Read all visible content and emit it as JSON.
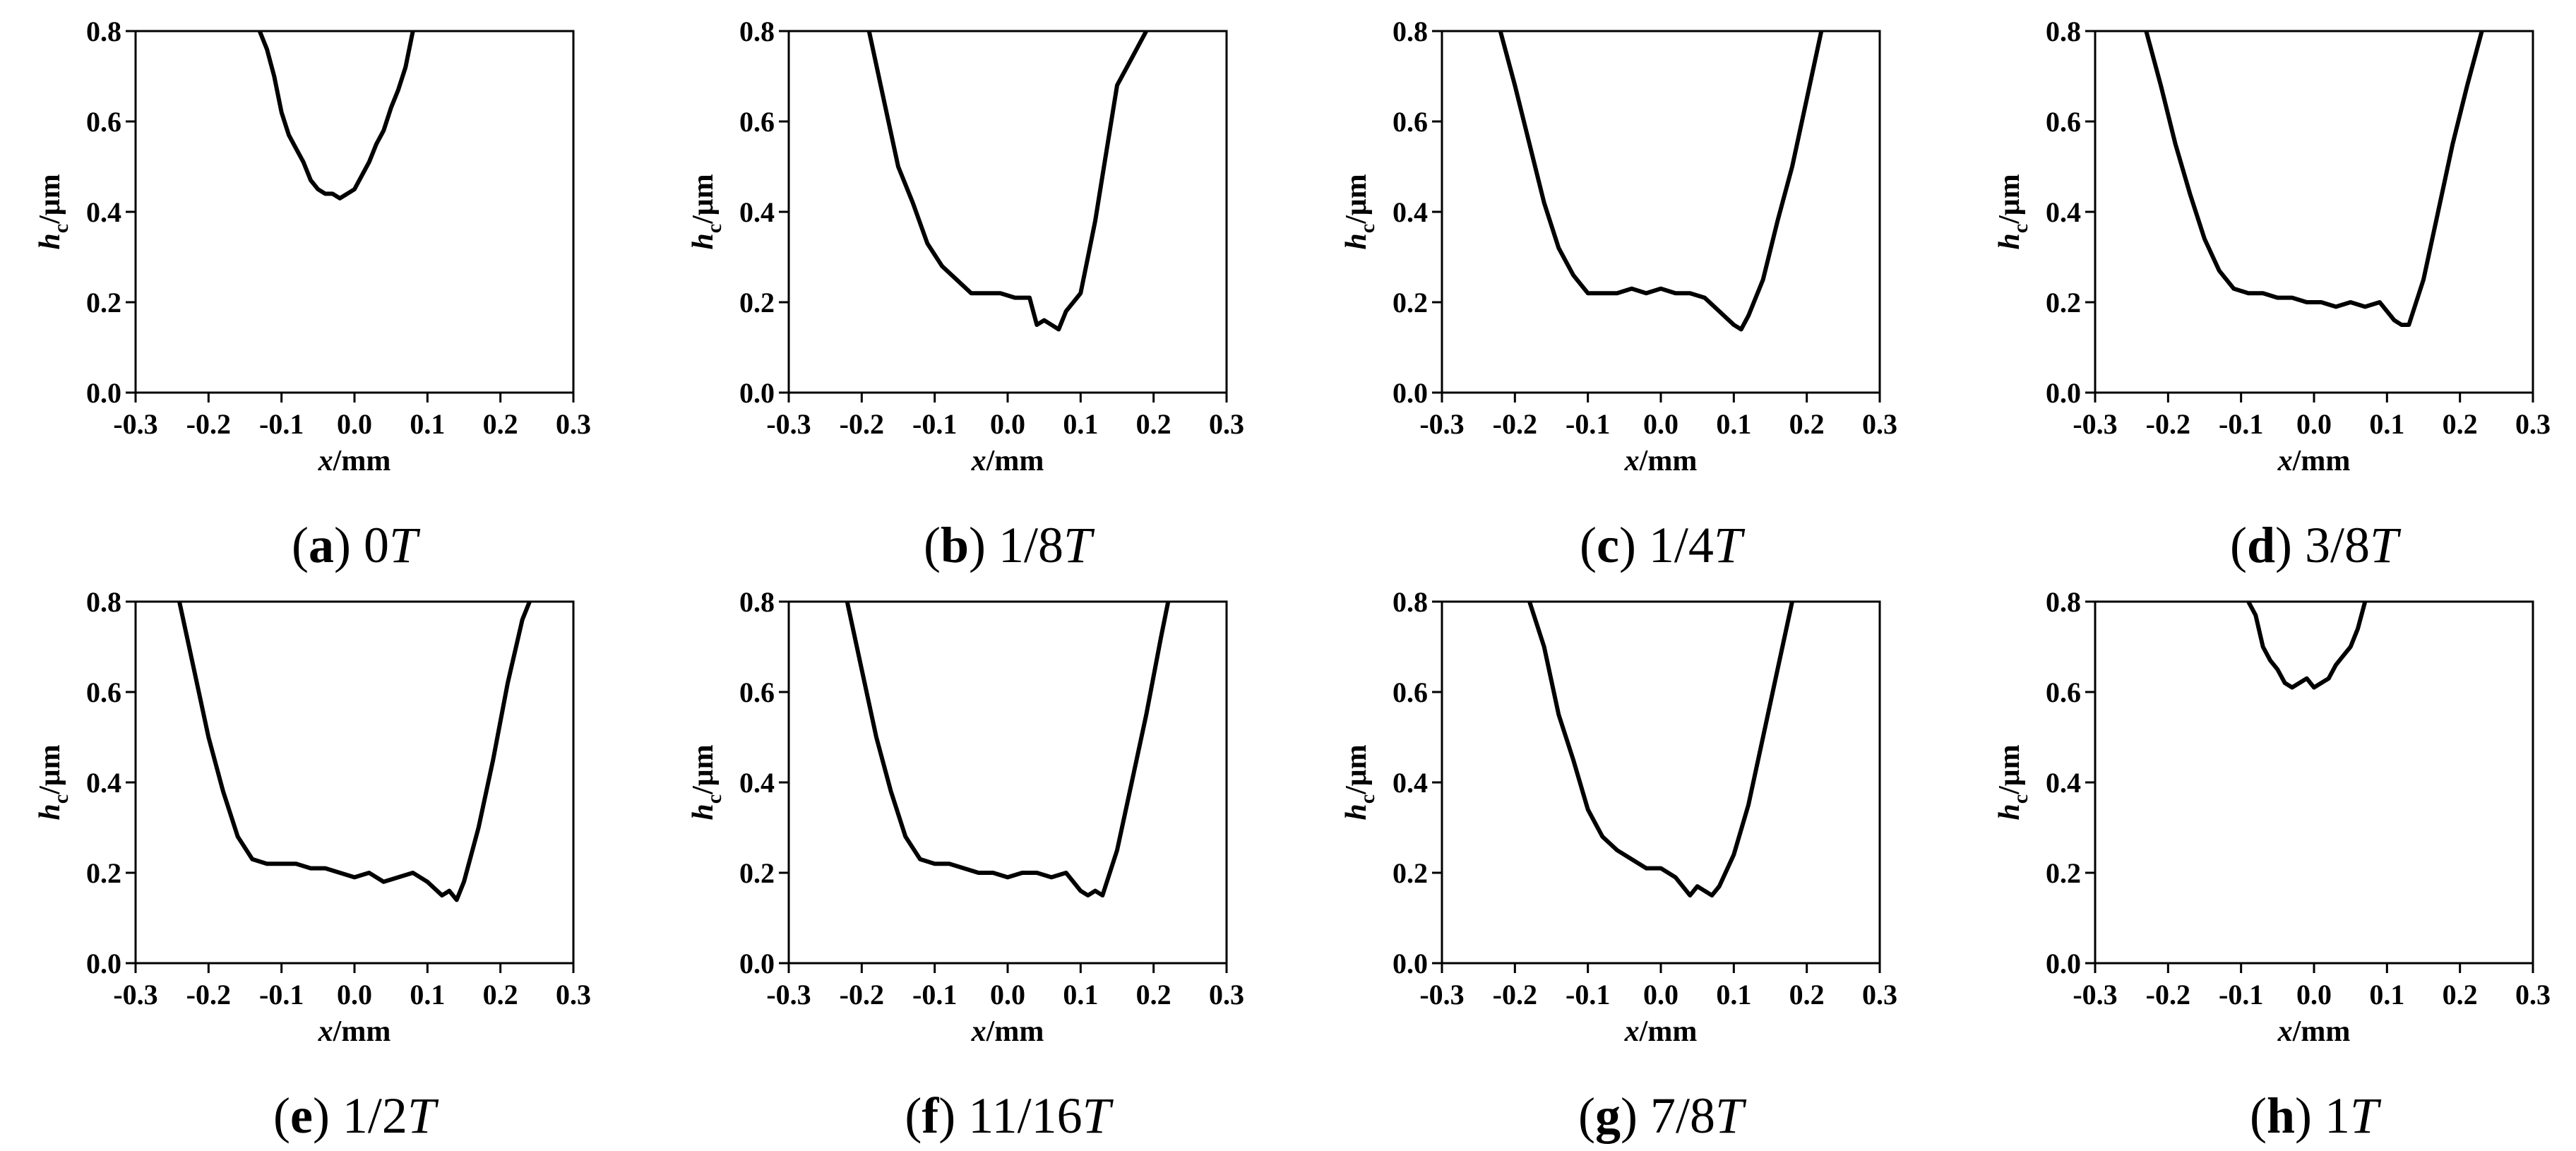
{
  "figure": {
    "panels": [
      {
        "id": "a",
        "letter": "a",
        "label": "0",
        "italic": "T"
      },
      {
        "id": "b",
        "letter": "b",
        "label": "1/8",
        "italic": "T"
      },
      {
        "id": "c",
        "letter": "c",
        "label": "1/4",
        "italic": "T"
      },
      {
        "id": "d",
        "letter": "d",
        "label": "3/8",
        "italic": "T"
      },
      {
        "id": "e",
        "letter": "e",
        "label": "1/2",
        "italic": "T"
      },
      {
        "id": "f",
        "letter": "f",
        "label": "11/16",
        "italic": "T"
      },
      {
        "id": "g",
        "letter": "g",
        "label": "7/8",
        "italic": "T"
      },
      {
        "id": "h",
        "letter": "h",
        "label": "1",
        "italic": "T"
      }
    ]
  },
  "chart_data": [
    {
      "type": "line",
      "caption": "(a) 0T",
      "xlabel": "x/mm",
      "ylabel": "hc/μm",
      "xlim": [
        -0.3,
        0.3
      ],
      "ylim": [
        0.0,
        0.8
      ],
      "xticks": [
        "-0.3",
        "-0.2",
        "-0.1",
        "0.0",
        "0.1",
        "0.2",
        "0.3"
      ],
      "yticks": [
        "0.0",
        "0.2",
        "0.4",
        "0.6",
        "0.8"
      ],
      "x": [
        -0.13,
        -0.12,
        -0.11,
        -0.1,
        -0.09,
        -0.08,
        -0.07,
        -0.06,
        -0.05,
        -0.04,
        -0.03,
        -0.02,
        -0.01,
        0.0,
        0.01,
        0.02,
        0.03,
        0.04,
        0.05,
        0.06,
        0.07,
        0.08
      ],
      "y": [
        0.8,
        0.76,
        0.7,
        0.62,
        0.57,
        0.54,
        0.51,
        0.47,
        0.45,
        0.44,
        0.44,
        0.43,
        0.44,
        0.45,
        0.48,
        0.51,
        0.55,
        0.58,
        0.63,
        0.67,
        0.72,
        0.8
      ]
    },
    {
      "type": "line",
      "caption": "(b) 1/8T",
      "xlabel": "x/mm",
      "ylabel": "hc/μm",
      "xlim": [
        -0.3,
        0.3
      ],
      "ylim": [
        0.0,
        0.8
      ],
      "xticks": [
        "-0.3",
        "-0.2",
        "-0.1",
        "0.0",
        "0.1",
        "0.2",
        "0.3"
      ],
      "yticks": [
        "0.0",
        "0.2",
        "0.4",
        "0.6",
        "0.8"
      ],
      "x": [
        -0.19,
        -0.17,
        -0.15,
        -0.13,
        -0.11,
        -0.09,
        -0.07,
        -0.05,
        -0.03,
        -0.01,
        0.01,
        0.03,
        0.04,
        0.05,
        0.06,
        0.07,
        0.08,
        0.09,
        0.1,
        0.11,
        0.12,
        0.13,
        0.15,
        0.17,
        0.19
      ],
      "y": [
        0.8,
        0.65,
        0.5,
        0.42,
        0.33,
        0.28,
        0.25,
        0.22,
        0.22,
        0.22,
        0.21,
        0.21,
        0.15,
        0.16,
        0.15,
        0.14,
        0.18,
        0.2,
        0.22,
        0.3,
        0.38,
        0.48,
        0.68,
        0.74,
        0.8
      ]
    },
    {
      "type": "line",
      "caption": "(c) 1/4T",
      "xlabel": "x/mm",
      "ylabel": "hc/μm",
      "xlim": [
        -0.3,
        0.3
      ],
      "ylim": [
        0.0,
        0.8
      ],
      "xticks": [
        "-0.3",
        "-0.2",
        "-0.1",
        "0.0",
        "0.1",
        "0.2",
        "0.3"
      ],
      "yticks": [
        "0.0",
        "0.2",
        "0.4",
        "0.6",
        "0.8"
      ],
      "x": [
        -0.22,
        -0.2,
        -0.18,
        -0.16,
        -0.14,
        -0.12,
        -0.1,
        -0.08,
        -0.06,
        -0.04,
        -0.02,
        0.0,
        0.02,
        0.04,
        0.06,
        0.08,
        0.1,
        0.11,
        0.12,
        0.14,
        0.16,
        0.18,
        0.2,
        0.22
      ],
      "y": [
        0.8,
        0.68,
        0.55,
        0.42,
        0.32,
        0.26,
        0.22,
        0.22,
        0.22,
        0.23,
        0.22,
        0.23,
        0.22,
        0.22,
        0.21,
        0.18,
        0.15,
        0.14,
        0.17,
        0.25,
        0.38,
        0.5,
        0.65,
        0.8
      ]
    },
    {
      "type": "line",
      "caption": "(d) 3/8T",
      "xlabel": "x/mm",
      "ylabel": "hc/μm",
      "xlim": [
        -0.3,
        0.3
      ],
      "ylim": [
        0.0,
        0.8
      ],
      "xticks": [
        "-0.3",
        "-0.2",
        "-0.1",
        "0.0",
        "0.1",
        "0.2",
        "0.3"
      ],
      "yticks": [
        "0.0",
        "0.2",
        "0.4",
        "0.6",
        "0.8"
      ],
      "x": [
        -0.23,
        -0.21,
        -0.19,
        -0.17,
        -0.15,
        -0.13,
        -0.11,
        -0.09,
        -0.07,
        -0.05,
        -0.03,
        -0.01,
        0.01,
        0.03,
        0.05,
        0.07,
        0.09,
        0.11,
        0.12,
        0.13,
        0.15,
        0.17,
        0.19,
        0.21,
        0.23
      ],
      "y": [
        0.8,
        0.68,
        0.55,
        0.44,
        0.34,
        0.27,
        0.23,
        0.22,
        0.22,
        0.21,
        0.21,
        0.2,
        0.2,
        0.19,
        0.2,
        0.19,
        0.2,
        0.16,
        0.15,
        0.15,
        0.25,
        0.4,
        0.55,
        0.68,
        0.8
      ]
    },
    {
      "type": "line",
      "caption": "(e) 1/2T",
      "xlabel": "x/mm",
      "ylabel": "hc/μm",
      "xlim": [
        -0.3,
        0.3
      ],
      "ylim": [
        0.0,
        0.8
      ],
      "xticks": [
        "-0.3",
        "-0.2",
        "-0.1",
        "0.0",
        "0.1",
        "0.2",
        "0.3"
      ],
      "yticks": [
        "0.0",
        "0.2",
        "0.4",
        "0.6",
        "0.8"
      ],
      "x": [
        -0.24,
        -0.22,
        -0.2,
        -0.18,
        -0.16,
        -0.14,
        -0.12,
        -0.1,
        -0.08,
        -0.06,
        -0.04,
        -0.02,
        0.0,
        0.02,
        0.04,
        0.06,
        0.08,
        0.1,
        0.12,
        0.13,
        0.14,
        0.15,
        0.17,
        0.19,
        0.21,
        0.23,
        0.24
      ],
      "y": [
        0.8,
        0.65,
        0.5,
        0.38,
        0.28,
        0.23,
        0.22,
        0.22,
        0.22,
        0.21,
        0.21,
        0.2,
        0.19,
        0.2,
        0.18,
        0.19,
        0.2,
        0.18,
        0.15,
        0.16,
        0.14,
        0.18,
        0.3,
        0.45,
        0.62,
        0.76,
        0.8
      ]
    },
    {
      "type": "line",
      "caption": "(f) 11/16T",
      "xlabel": "x/mm",
      "ylabel": "hc/μm",
      "xlim": [
        -0.3,
        0.3
      ],
      "ylim": [
        0.0,
        0.8
      ],
      "xticks": [
        "-0.3",
        "-0.2",
        "-0.1",
        "0.0",
        "0.1",
        "0.2",
        "0.3"
      ],
      "yticks": [
        "0.0",
        "0.2",
        "0.4",
        "0.6",
        "0.8"
      ],
      "x": [
        -0.22,
        -0.2,
        -0.18,
        -0.16,
        -0.14,
        -0.12,
        -0.1,
        -0.08,
        -0.06,
        -0.04,
        -0.02,
        0.0,
        0.02,
        0.04,
        0.06,
        0.08,
        0.1,
        0.11,
        0.12,
        0.13,
        0.15,
        0.17,
        0.19,
        0.21,
        0.22
      ],
      "y": [
        0.8,
        0.65,
        0.5,
        0.38,
        0.28,
        0.23,
        0.22,
        0.22,
        0.21,
        0.2,
        0.2,
        0.19,
        0.2,
        0.2,
        0.19,
        0.2,
        0.16,
        0.15,
        0.16,
        0.15,
        0.25,
        0.4,
        0.55,
        0.72,
        0.8
      ]
    },
    {
      "type": "line",
      "caption": "(g) 7/8T",
      "xlabel": "x/mm",
      "ylabel": "hc/μm",
      "xlim": [
        -0.3,
        0.3
      ],
      "ylim": [
        0.0,
        0.8
      ],
      "xticks": [
        "-0.3",
        "-0.2",
        "-0.1",
        "0.0",
        "0.1",
        "0.2",
        "0.3"
      ],
      "yticks": [
        "0.0",
        "0.2",
        "0.4",
        "0.6",
        "0.8"
      ],
      "x": [
        -0.18,
        -0.16,
        -0.14,
        -0.12,
        -0.1,
        -0.08,
        -0.06,
        -0.04,
        -0.02,
        0.0,
        0.02,
        0.04,
        0.05,
        0.06,
        0.07,
        0.08,
        0.1,
        0.12,
        0.14,
        0.16,
        0.18
      ],
      "y": [
        0.8,
        0.7,
        0.55,
        0.45,
        0.34,
        0.28,
        0.25,
        0.23,
        0.21,
        0.21,
        0.19,
        0.15,
        0.17,
        0.16,
        0.15,
        0.17,
        0.24,
        0.35,
        0.5,
        0.65,
        0.8
      ]
    },
    {
      "type": "line",
      "caption": "(h) 1T",
      "xlabel": "x/mm",
      "ylabel": "hc/μm",
      "xlim": [
        -0.3,
        0.3
      ],
      "ylim": [
        0.0,
        0.8
      ],
      "xticks": [
        "-0.3",
        "-0.2",
        "-0.1",
        "0.0",
        "0.1",
        "0.2",
        "0.3"
      ],
      "yticks": [
        "0.0",
        "0.2",
        "0.4",
        "0.6",
        "0.8"
      ],
      "x": [
        -0.09,
        -0.08,
        -0.07,
        -0.06,
        -0.05,
        -0.04,
        -0.03,
        -0.02,
        -0.01,
        0.0,
        0.01,
        0.02,
        0.03,
        0.04,
        0.05,
        0.06,
        0.07
      ],
      "y": [
        0.8,
        0.77,
        0.7,
        0.67,
        0.65,
        0.62,
        0.61,
        0.62,
        0.63,
        0.61,
        0.62,
        0.63,
        0.66,
        0.68,
        0.7,
        0.74,
        0.8
      ]
    }
  ]
}
